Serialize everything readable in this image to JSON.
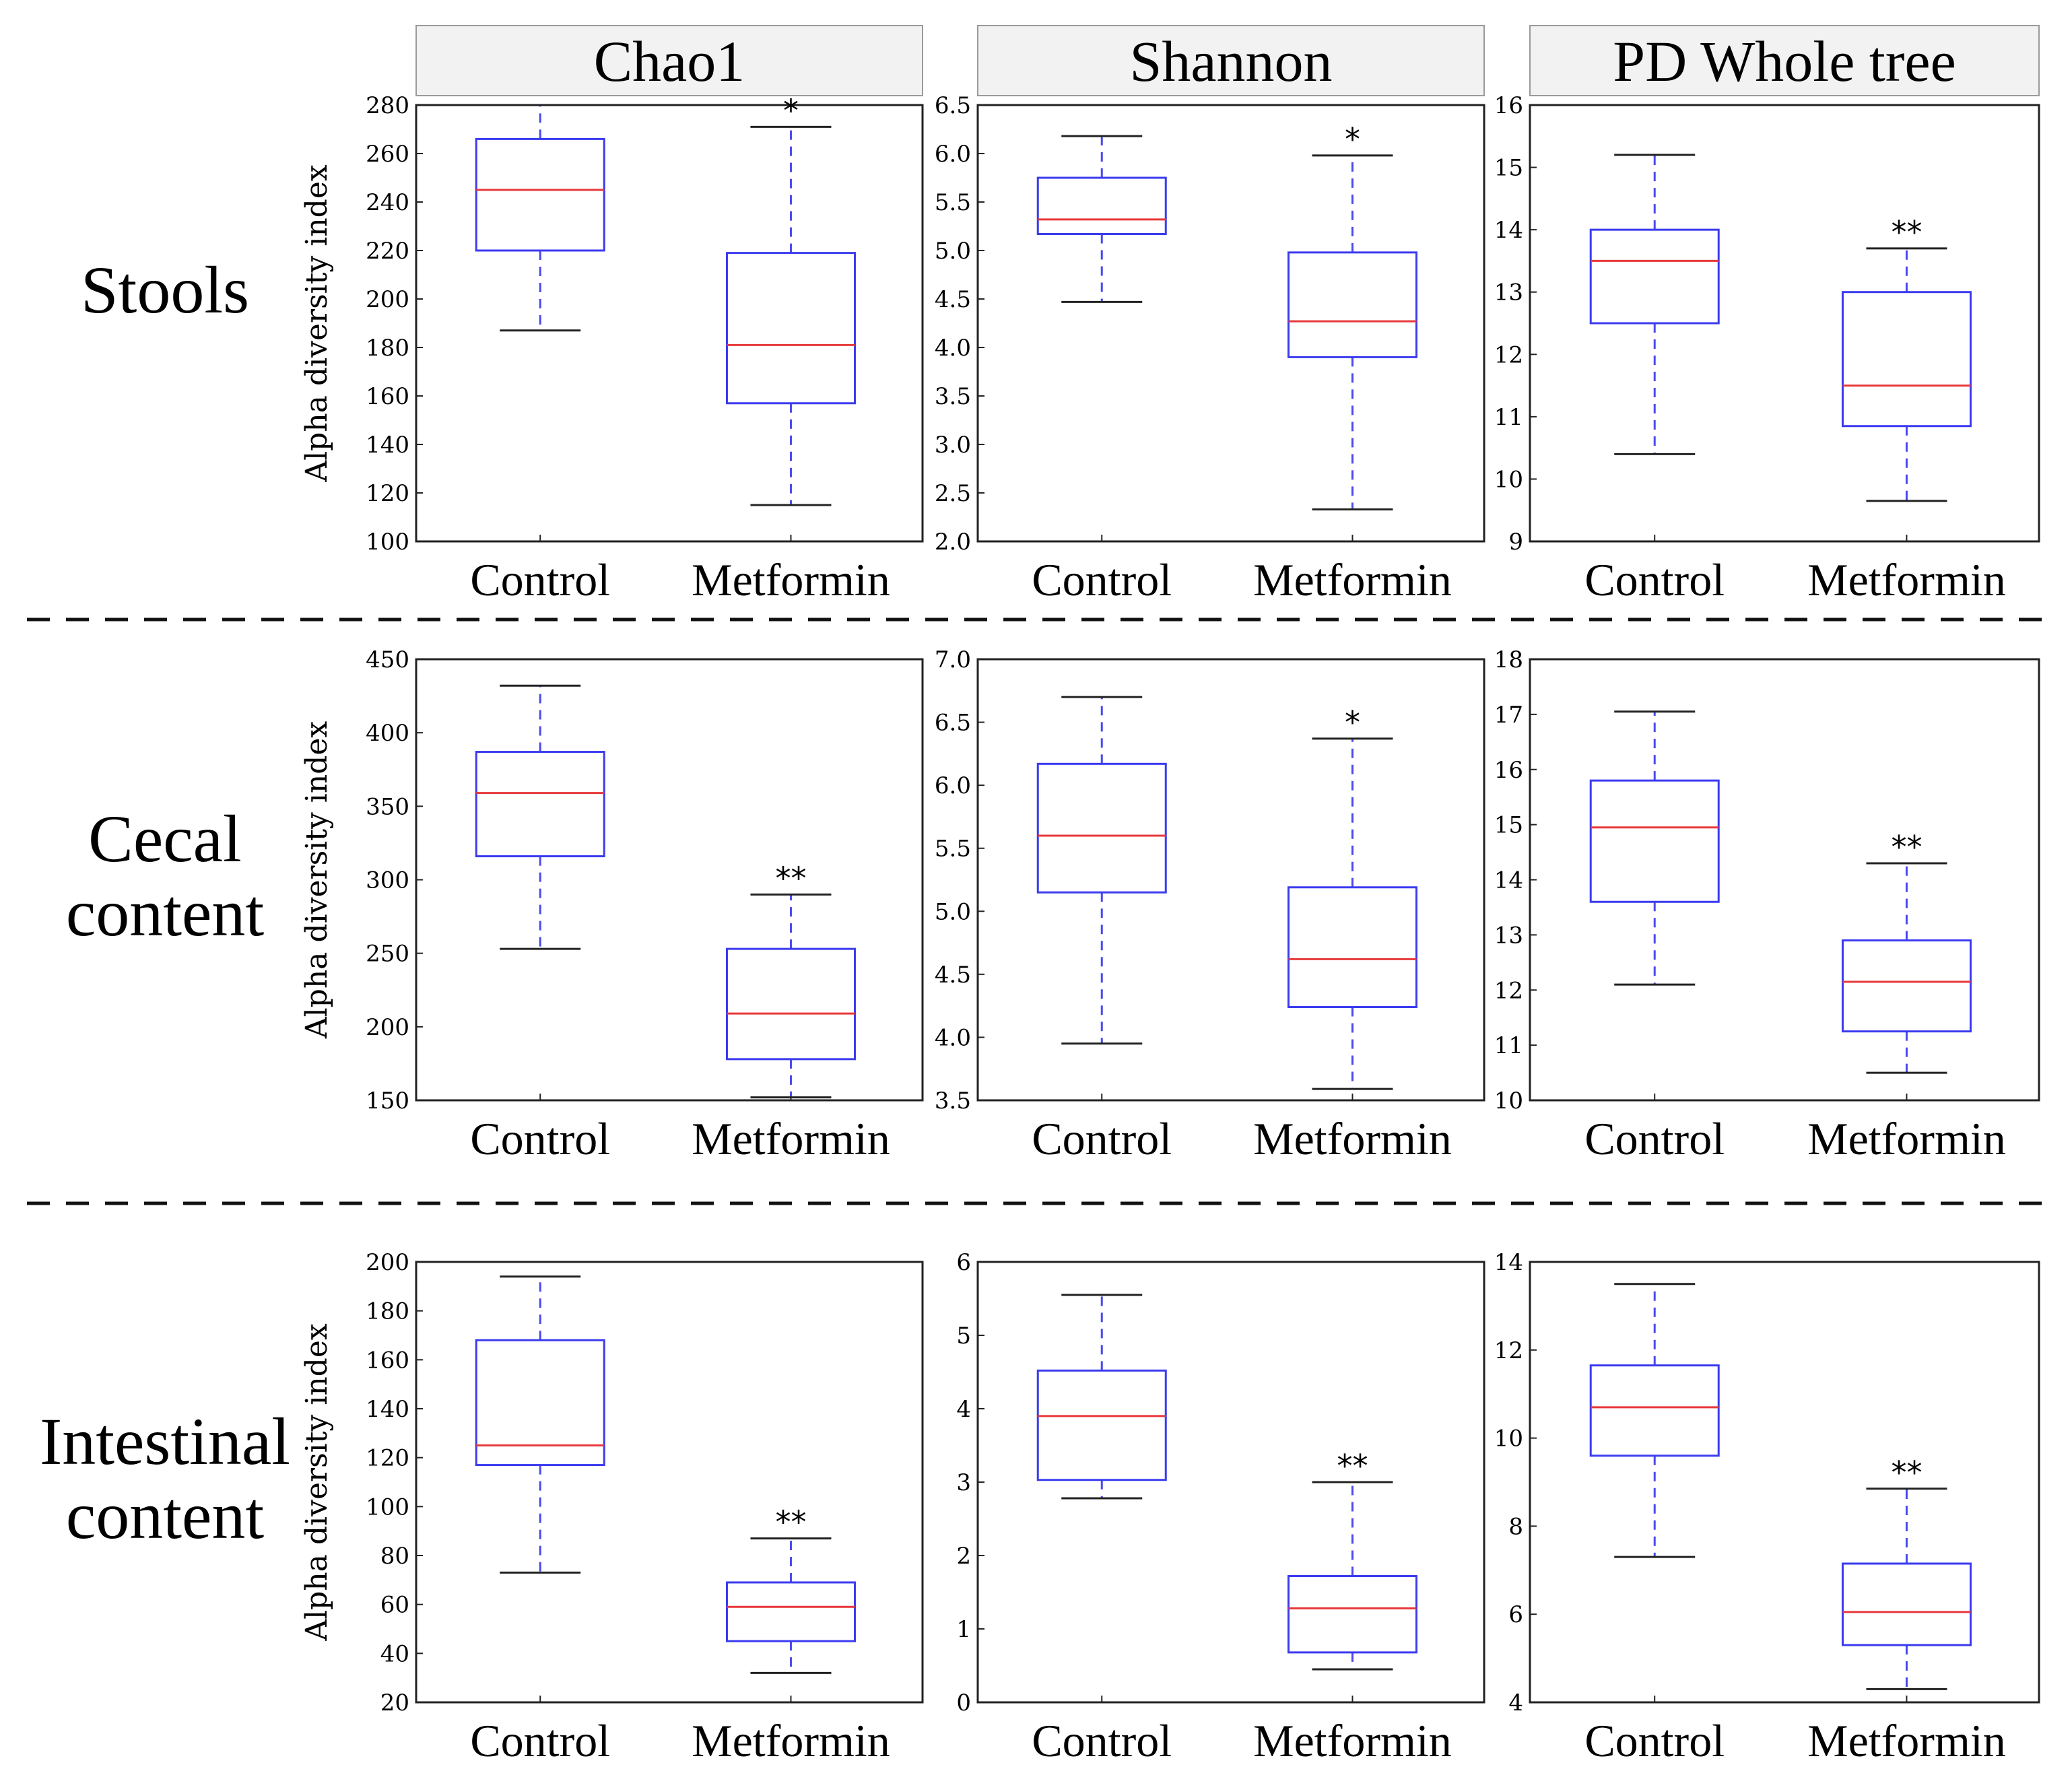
{
  "figure": {
    "col_headers": [
      "Chao1",
      "Shannon",
      "PD Whole tree"
    ],
    "rows": [
      {
        "label_lines": [
          "Stools"
        ]
      },
      {
        "label_lines": [
          "Cecal",
          "content"
        ]
      },
      {
        "label_lines": [
          "Intestinal",
          "content"
        ]
      }
    ]
  },
  "colors": {
    "box": "#3b3bf0",
    "median": "#e8383a",
    "whisker": "#4a4af0",
    "cap": "#222222",
    "header_bg": "#f2f2f2",
    "dash": "#111111"
  },
  "chart_data": [
    {
      "type": "box",
      "row": "Stools",
      "metric": "Chao1",
      "ylabel": "Alpha diversity index",
      "ylim": [
        100,
        280
      ],
      "ticks": [
        100,
        120,
        140,
        160,
        180,
        200,
        220,
        240,
        260,
        280
      ],
      "categories": [
        "Control",
        "Metformin"
      ],
      "boxes": [
        {
          "min": 187,
          "q1": 220,
          "median": 245,
          "q3": 266,
          "max": 280
        },
        {
          "min": 115,
          "q1": 157,
          "median": 181,
          "q3": 219,
          "max": 271
        }
      ],
      "significance": [
        "",
        "*"
      ]
    },
    {
      "type": "box",
      "row": "Stools",
      "metric": "Shannon",
      "ylabel": "",
      "ylim": [
        2.0,
        6.5
      ],
      "ticks": [
        "2.0",
        "2.5",
        "3.0",
        "3.5",
        "4.0",
        "4.5",
        "5.0",
        "5.5",
        "6.0",
        "6.5"
      ],
      "categories": [
        "Control",
        "Metformin"
      ],
      "boxes": [
        {
          "min": 4.47,
          "q1": 5.17,
          "median": 5.32,
          "q3": 5.75,
          "max": 6.18
        },
        {
          "min": 2.33,
          "q1": 3.9,
          "median": 4.27,
          "q3": 4.98,
          "max": 5.98
        }
      ],
      "significance": [
        "",
        "*"
      ]
    },
    {
      "type": "box",
      "row": "Stools",
      "metric": "PD Whole tree",
      "ylabel": "",
      "ylim": [
        9,
        16
      ],
      "ticks": [
        "9",
        "10",
        "11",
        "12",
        "13",
        "14",
        "15",
        "16"
      ],
      "categories": [
        "Control",
        "Metformin"
      ],
      "boxes": [
        {
          "min": 10.4,
          "q1": 12.5,
          "median": 13.5,
          "q3": 14.0,
          "max": 15.2
        },
        {
          "min": 9.65,
          "q1": 10.85,
          "median": 11.5,
          "q3": 13.0,
          "max": 13.7
        }
      ],
      "significance": [
        "",
        "**"
      ]
    },
    {
      "type": "box",
      "row": "Cecal content",
      "metric": "Chao1",
      "ylabel": "Alpha diversity index",
      "ylim": [
        150,
        450
      ],
      "ticks": [
        "150",
        "200",
        "250",
        "300",
        "350",
        "400",
        "450"
      ],
      "categories": [
        "Control",
        "Metformin"
      ],
      "boxes": [
        {
          "min": 253,
          "q1": 316,
          "median": 359,
          "q3": 387,
          "max": 432
        },
        {
          "min": 152,
          "q1": 178,
          "median": 209,
          "q3": 253,
          "max": 290
        }
      ],
      "significance": [
        "",
        "**"
      ]
    },
    {
      "type": "box",
      "row": "Cecal content",
      "metric": "Shannon",
      "ylabel": "",
      "ylim": [
        3.5,
        7.0
      ],
      "ticks": [
        "3.5",
        "4.0",
        "4.5",
        "5.0",
        "5.5",
        "6.0",
        "6.5",
        "7.0"
      ],
      "categories": [
        "Control",
        "Metformin"
      ],
      "boxes": [
        {
          "min": 3.95,
          "q1": 5.15,
          "median": 5.6,
          "q3": 6.17,
          "max": 6.7
        },
        {
          "min": 3.59,
          "q1": 4.24,
          "median": 4.62,
          "q3": 5.19,
          "max": 6.37
        }
      ],
      "significance": [
        "",
        "*"
      ]
    },
    {
      "type": "box",
      "row": "Cecal content",
      "metric": "PD Whole tree",
      "ylabel": "",
      "ylim": [
        10,
        18
      ],
      "ticks": [
        "10",
        "11",
        "12",
        "13",
        "14",
        "15",
        "16",
        "17",
        "18"
      ],
      "categories": [
        "Control",
        "Metformin"
      ],
      "boxes": [
        {
          "min": 12.1,
          "q1": 13.6,
          "median": 14.95,
          "q3": 15.8,
          "max": 17.05
        },
        {
          "min": 10.5,
          "q1": 11.25,
          "median": 12.15,
          "q3": 12.9,
          "max": 14.3
        }
      ],
      "significance": [
        "",
        "**"
      ]
    },
    {
      "type": "box",
      "row": "Intestinal content",
      "metric": "Chao1",
      "ylabel": "Alpha diversity index",
      "ylim": [
        20,
        200
      ],
      "ticks": [
        "20",
        "40",
        "60",
        "80",
        "100",
        "120",
        "140",
        "160",
        "180",
        "200"
      ],
      "categories": [
        "Control",
        "Metformin"
      ],
      "boxes": [
        {
          "min": 73,
          "q1": 117,
          "median": 125,
          "q3": 168,
          "max": 194
        },
        {
          "min": 32,
          "q1": 45,
          "median": 59,
          "q3": 69,
          "max": 87
        }
      ],
      "significance": [
        "",
        "**"
      ]
    },
    {
      "type": "box",
      "row": "Intestinal content",
      "metric": "Shannon",
      "ylabel": "",
      "ylim": [
        0,
        6
      ],
      "ticks": [
        "0",
        "1",
        "2",
        "3",
        "4",
        "5",
        "6"
      ],
      "categories": [
        "Control",
        "Metformin"
      ],
      "boxes": [
        {
          "min": 2.78,
          "q1": 3.03,
          "median": 3.9,
          "q3": 4.52,
          "max": 5.55
        },
        {
          "min": 0.45,
          "q1": 0.68,
          "median": 1.28,
          "q3": 1.72,
          "max": 3.0
        }
      ],
      "significance": [
        "",
        "**"
      ]
    },
    {
      "type": "box",
      "row": "Intestinal content",
      "metric": "PD Whole tree",
      "ylabel": "",
      "ylim": [
        4,
        14
      ],
      "ticks": [
        "4",
        "6",
        "8",
        "10",
        "12",
        "14"
      ],
      "categories": [
        "Control",
        "Metformin"
      ],
      "boxes": [
        {
          "min": 7.3,
          "q1": 9.6,
          "median": 10.7,
          "q3": 11.65,
          "max": 13.5
        },
        {
          "min": 4.3,
          "q1": 5.3,
          "median": 6.05,
          "q3": 7.15,
          "max": 8.85
        }
      ],
      "significance": [
        "",
        "**"
      ]
    }
  ]
}
